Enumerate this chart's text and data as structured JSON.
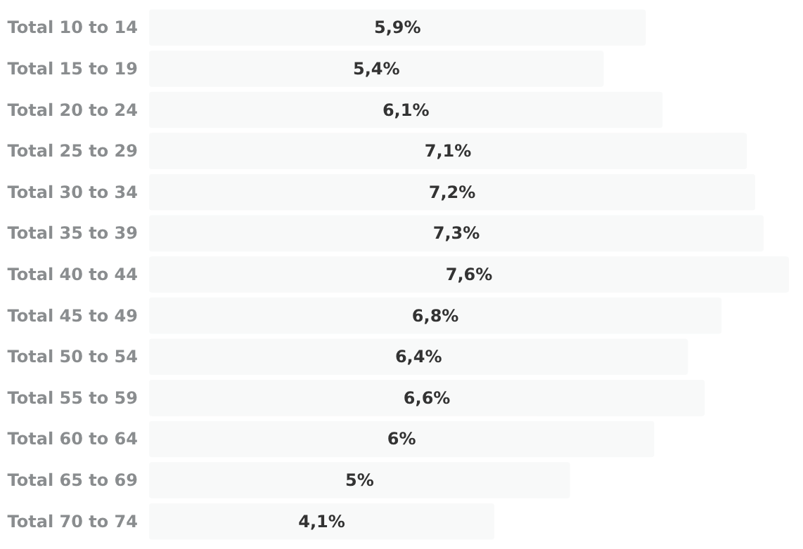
{
  "chart_data": {
    "type": "bar",
    "orientation": "horizontal",
    "categories": [
      "Total 10 to 14",
      "Total 15 to 19",
      "Total 20 to 24",
      "Total 25 to 29",
      "Total 30 to 34",
      "Total 35 to 39",
      "Total 40 to 44",
      "Total 45 to 49",
      "Total 50 to 54",
      "Total 55 to 59",
      "Total 60 to 64",
      "Total 65 to 69",
      "Total 70 to 74"
    ],
    "values": [
      5.9,
      5.4,
      6.1,
      7.1,
      7.2,
      7.3,
      7.6,
      6.8,
      6.4,
      6.6,
      6,
      5,
      4.1
    ],
    "value_labels": [
      "5,9%",
      "5,4%",
      "6,1%",
      "7,1%",
      "7,2%",
      "7,3%",
      "7,6%",
      "6,8%",
      "6,4%",
      "6,6%",
      "6%",
      "5%",
      "4,1%"
    ],
    "color": "#f8f9f9",
    "grid": false
  }
}
